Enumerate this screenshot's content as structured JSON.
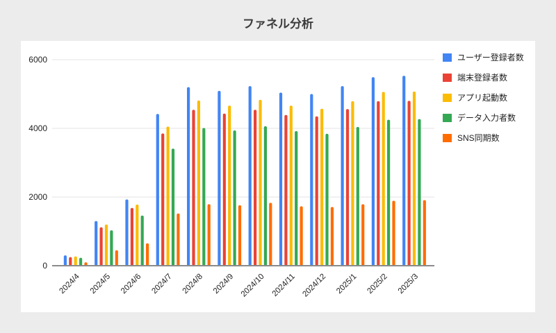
{
  "page": {
    "title": "ファネル分析"
  },
  "colors": {
    "background": "#ececec",
    "card": "#ffffff",
    "grid": "#e3e3e3",
    "axis_line": "#8a8a8a",
    "tick_text": "#1f1f1f"
  },
  "chart_data": {
    "type": "bar",
    "title": "ファネル分析",
    "categories": [
      "2024/4",
      "2024/5",
      "2024/6",
      "2024/7",
      "2024/8",
      "2024/9",
      "2024/10",
      "2024/11",
      "2024/12",
      "2025/1",
      "2025/2",
      "2025/3"
    ],
    "series": [
      {
        "name": "ユーザー登録者数",
        "color": "#4285F4",
        "values": [
          300,
          1300,
          1930,
          4420,
          5200,
          5090,
          5230,
          5040,
          5000,
          5230,
          5490,
          5530
        ]
      },
      {
        "name": "端末登録者数",
        "color": "#EA4335",
        "values": [
          250,
          1120,
          1680,
          3850,
          4540,
          4430,
          4540,
          4390,
          4350,
          4560,
          4790,
          4800
        ]
      },
      {
        "name": "アプリ起動数",
        "color": "#FBBC04",
        "values": [
          270,
          1200,
          1780,
          4050,
          4810,
          4660,
          4830,
          4660,
          4570,
          4790,
          5060,
          5070
        ]
      },
      {
        "name": "データ入力者数",
        "color": "#34A853",
        "values": [
          230,
          1030,
          1460,
          3410,
          4010,
          3940,
          4060,
          3920,
          3840,
          4040,
          4250,
          4270
        ]
      },
      {
        "name": "SNS同期数",
        "color": "#FF6D01",
        "values": [
          100,
          450,
          650,
          1520,
          1790,
          1760,
          1830,
          1730,
          1710,
          1790,
          1890,
          1910
        ]
      }
    ],
    "xlabel": "",
    "ylabel": "",
    "y_axis": {
      "ticks": [
        0,
        2000,
        4000,
        6000
      ],
      "range": [
        0,
        6000
      ]
    },
    "grid": true,
    "legend_position": "right",
    "x_tick_rotation": -45
  }
}
